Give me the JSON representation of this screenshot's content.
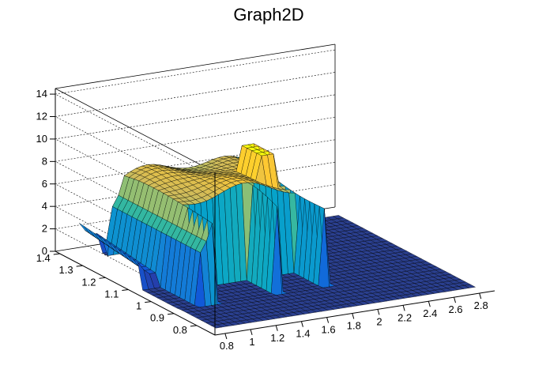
{
  "chart_data": {
    "type": "surface",
    "title": "Graph2D",
    "x_ticks": [
      "0.8",
      "1",
      "1.2",
      "1.4",
      "1.6",
      "1.8",
      "2",
      "2.2",
      "2.4",
      "2.6",
      "2.8"
    ],
    "y_ticks": [
      "0.8",
      "0.9",
      "1",
      "1.1",
      "1.2",
      "1.3",
      "1.4"
    ],
    "z_ticks": [
      "0",
      "2",
      "4",
      "6",
      "8",
      "10",
      "12",
      "14"
    ],
    "xlim": [
      0.72,
      2.92
    ],
    "ylim": [
      0.72,
      1.42
    ],
    "zlim": [
      0,
      14.5
    ],
    "palette": [
      "#352a87",
      "#0f5cdd",
      "#1481d6",
      "#06a4ca",
      "#2eb7a4",
      "#87bf77",
      "#d1bb59",
      "#fec832",
      "#f9fb0e"
    ],
    "grid": true,
    "colormap": "parula",
    "peak_z": 10,
    "plateau_z": 8
  }
}
